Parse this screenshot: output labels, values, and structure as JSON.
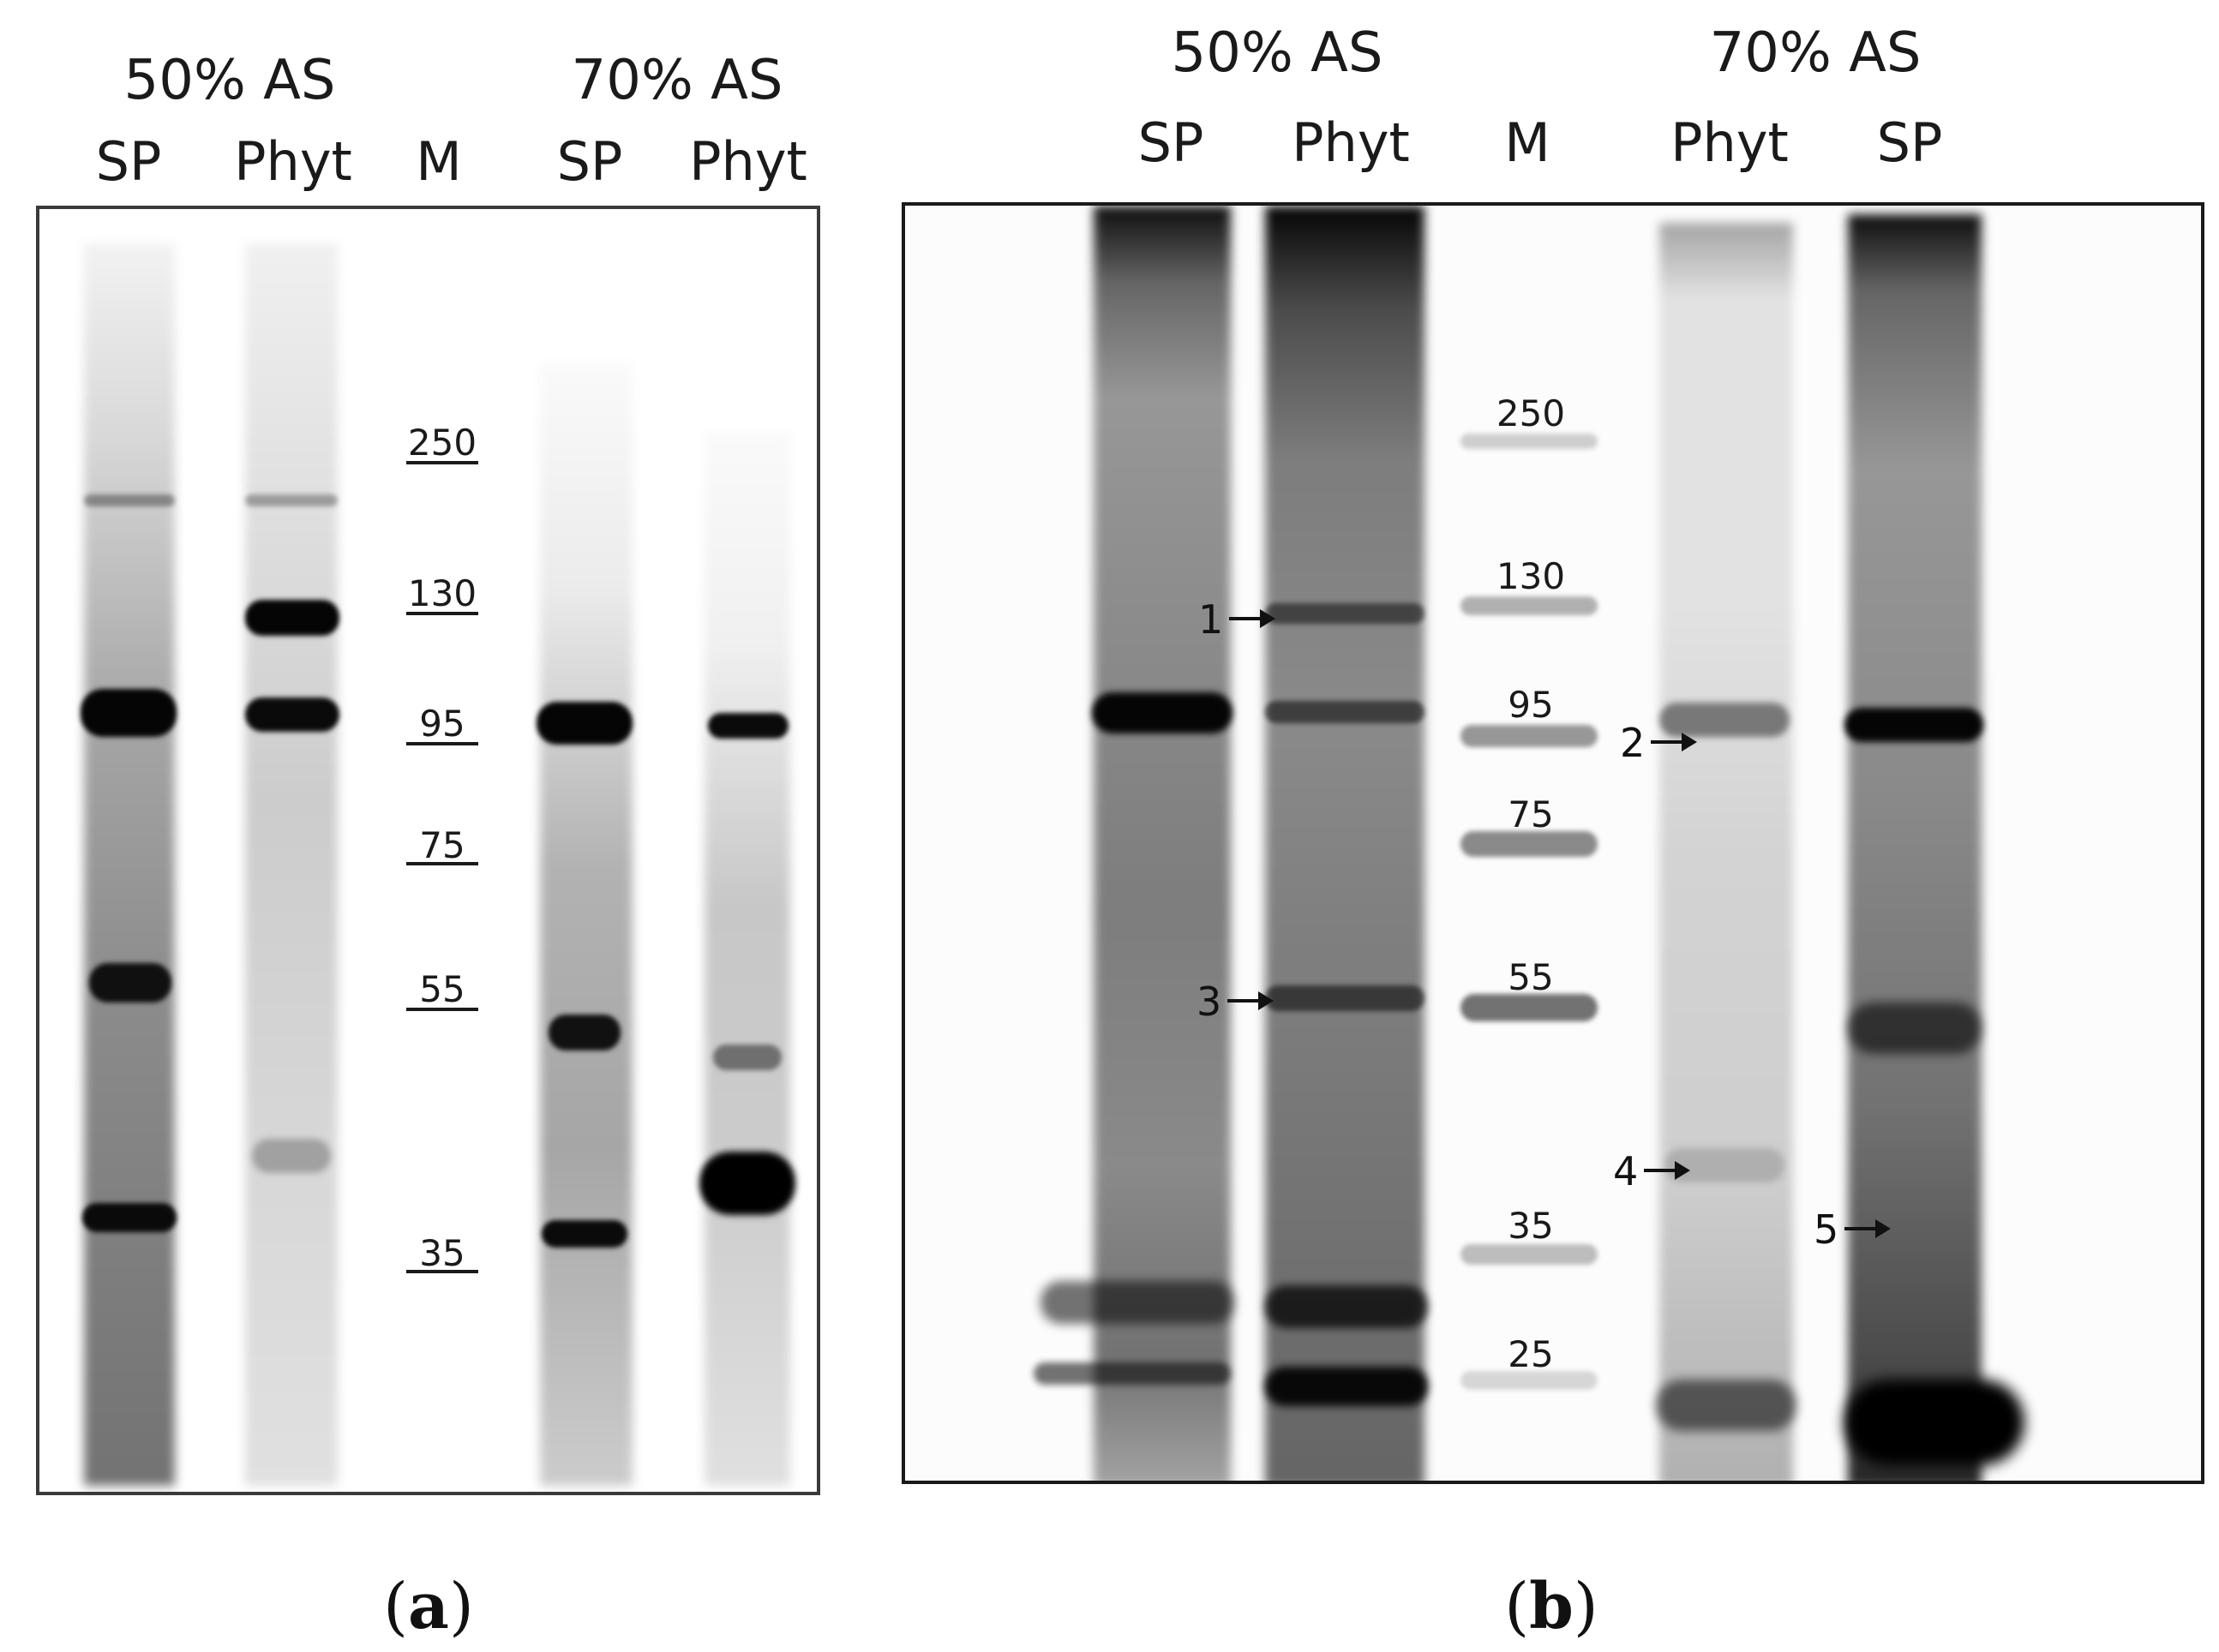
{
  "panel_a": {
    "group_left": "50% AS",
    "group_right": "70% AS",
    "lanes": [
      "SP",
      "Phyt",
      "M",
      "SP",
      "Phyt"
    ],
    "markers": [
      "250",
      "130",
      "95",
      "75",
      "55",
      "35"
    ],
    "caption_open": "(",
    "caption_letter": "a",
    "caption_close": ")"
  },
  "panel_b": {
    "group_left": "50% AS",
    "group_right": "70% AS",
    "lanes": [
      "SP",
      "Phyt",
      "M",
      "Phyt",
      "SP"
    ],
    "markers": [
      "250",
      "130",
      "95",
      "75",
      "55",
      "35",
      "25"
    ],
    "arrows": [
      "1",
      "2",
      "3",
      "4",
      "5"
    ],
    "caption_open": "(",
    "caption_letter": "b",
    "caption_close": ")"
  }
}
